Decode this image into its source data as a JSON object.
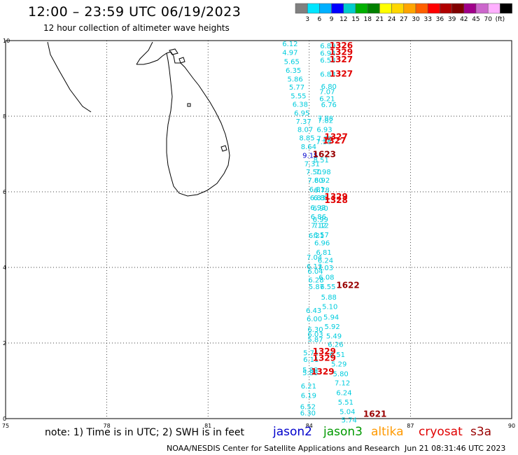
{
  "title": "12:00 – 23:59 UTC 06/19/2023",
  "subtitle": "12 hour collection of altimeter wave heights",
  "colorbar": {
    "colors": [
      "#808080",
      "#00e5ff",
      "#00b0ff",
      "#0000ff",
      "#00cccc",
      "#00b000",
      "#008000",
      "#ffff00",
      "#ffd700",
      "#ffa500",
      "#ff6000",
      "#ff0000",
      "#b00000",
      "#800000",
      "#a0008a",
      "#cc66cc",
      "#ffb0ff",
      "#000000"
    ],
    "labels": [
      "3",
      "6",
      "9",
      "12",
      "15",
      "18",
      "21",
      "24",
      "27",
      "30",
      "33",
      "36",
      "39",
      "42",
      "45",
      "70",
      "(ft)"
    ]
  },
  "axes": {
    "x_ticks": [
      "75",
      "78",
      "81",
      "84",
      "87",
      "90"
    ],
    "y_ticks": [
      "0",
      "2",
      "4",
      "6",
      "8",
      "10"
    ]
  },
  "observations": [
    {
      "t": "6.12",
      "lon": 83.2,
      "lat": 9.85,
      "c": "#00ccdd"
    },
    {
      "t": "4.97",
      "lon": 83.2,
      "lat": 9.62,
      "c": "#00ccdd"
    },
    {
      "t": "5.65",
      "lon": 83.25,
      "lat": 9.38,
      "c": "#00ccdd"
    },
    {
      "t": "6.35",
      "lon": 83.3,
      "lat": 9.15,
      "c": "#00ccdd"
    },
    {
      "t": "5.86",
      "lon": 83.35,
      "lat": 8.92,
      "c": "#00ccdd"
    },
    {
      "t": "5.77",
      "lon": 83.4,
      "lat": 8.7,
      "c": "#00ccdd"
    },
    {
      "t": "5.55",
      "lon": 83.45,
      "lat": 8.47,
      "c": "#00ccdd"
    },
    {
      "t": "6.38",
      "lon": 83.5,
      "lat": 8.25,
      "c": "#00ccdd"
    },
    {
      "t": "6.95",
      "lon": 83.55,
      "lat": 8.02,
      "c": "#00ccdd"
    },
    {
      "t": "7.37",
      "lon": 83.6,
      "lat": 7.8,
      "c": "#00ccdd"
    },
    {
      "t": "8.07",
      "lon": 83.65,
      "lat": 7.58,
      "c": "#00ccdd"
    },
    {
      "t": "8.85",
      "lon": 83.7,
      "lat": 7.36,
      "c": "#00ccdd"
    },
    {
      "t": "8.64",
      "lon": 83.75,
      "lat": 7.13,
      "c": "#00ccdd"
    },
    {
      "t": "9.15",
      "lon": 83.8,
      "lat": 6.9,
      "c": "#0000cc"
    },
    {
      "t": "7.31",
      "lon": 83.85,
      "lat": 6.68,
      "c": "#00ccdd"
    },
    {
      "t": "7.50",
      "lon": 83.9,
      "lat": 6.46,
      "c": "#00ccdd"
    },
    {
      "t": "7.80",
      "lon": 83.95,
      "lat": 6.24,
      "c": "#00ccdd"
    },
    {
      "t": "6.81",
      "lon": 84.0,
      "lat": 6.0,
      "c": "#00ccdd"
    },
    {
      "t": "6.83",
      "lon": 84.02,
      "lat": 5.78,
      "c": "#00ccdd"
    },
    {
      "t": "6.93",
      "lon": 84.03,
      "lat": 5.52,
      "c": "#00ccdd"
    },
    {
      "t": "6.86",
      "lon": 84.04,
      "lat": 5.28,
      "c": "#00ccdd"
    },
    {
      "t": "7.12",
      "lon": 84.05,
      "lat": 5.05,
      "c": "#00ccdd"
    },
    {
      "t": "6.21",
      "lon": 83.98,
      "lat": 4.78,
      "c": "#00ccdd"
    },
    {
      "t": "7.04",
      "lon": 83.92,
      "lat": 4.2,
      "c": "#00ccdd"
    },
    {
      "t": "6.13",
      "lon": 83.92,
      "lat": 3.96,
      "c": "#00ccdd"
    },
    {
      "t": "6.04",
      "lon": 83.95,
      "lat": 3.83,
      "c": "#00ccdd"
    },
    {
      "t": "6.28",
      "lon": 83.97,
      "lat": 3.6,
      "c": "#00ccdd"
    },
    {
      "t": "5.87",
      "lon": 83.98,
      "lat": 3.43,
      "c": "#00ccdd"
    },
    {
      "t": "6.43",
      "lon": 83.9,
      "lat": 2.8,
      "c": "#00ccdd"
    },
    {
      "t": "6.00",
      "lon": 83.92,
      "lat": 2.57,
      "c": "#00ccdd"
    },
    {
      "t": "6.30",
      "lon": 83.95,
      "lat": 2.3,
      "c": "#00ccdd"
    },
    {
      "t": "6.03",
      "lon": 83.95,
      "lat": 2.17,
      "c": "#00ccdd"
    },
    {
      "t": "5.87",
      "lon": 83.95,
      "lat": 2.03,
      "c": "#00ccdd"
    },
    {
      "t": "5.71",
      "lon": 83.82,
      "lat": 1.68,
      "c": "#00ccdd"
    },
    {
      "t": "6.11",
      "lon": 83.82,
      "lat": 1.5,
      "c": "#00ccdd"
    },
    {
      "t": "5.88",
      "lon": 83.8,
      "lat": 1.22,
      "c": "#00ccdd"
    },
    {
      "t": "5.86",
      "lon": 83.8,
      "lat": 1.15,
      "c": "#00ccdd"
    },
    {
      "t": "6.21",
      "lon": 83.75,
      "lat": 0.8,
      "c": "#00ccdd"
    },
    {
      "t": "6.19",
      "lon": 83.75,
      "lat": 0.55,
      "c": "#00ccdd"
    },
    {
      "t": "6.52",
      "lon": 83.73,
      "lat": 0.25,
      "c": "#00ccdd"
    },
    {
      "t": "6.30",
      "lon": 83.73,
      "lat": 0.08,
      "c": "#00ccdd"
    },
    {
      "t": "6.89",
      "lon": 84.32,
      "lat": 9.8,
      "c": "#00ccdd"
    },
    {
      "t": "6.94",
      "lon": 84.32,
      "lat": 9.6,
      "c": "#00ccdd"
    },
    {
      "t": "6.58",
      "lon": 84.32,
      "lat": 9.42,
      "c": "#00ccdd"
    },
    {
      "t": "6.83",
      "lon": 84.32,
      "lat": 9.05,
      "c": "#00ccdd"
    },
    {
      "t": "6.80",
      "lon": 84.35,
      "lat": 8.72,
      "c": "#00ccdd"
    },
    {
      "t": "7.07",
      "lon": 84.3,
      "lat": 8.58,
      "c": "#00ccdd"
    },
    {
      "t": "6.21",
      "lon": 84.3,
      "lat": 8.4,
      "c": "#00ccdd"
    },
    {
      "t": "6.76",
      "lon": 84.35,
      "lat": 8.24,
      "c": "#00ccdd"
    },
    {
      "t": "7.88",
      "lon": 84.25,
      "lat": 7.88,
      "c": "#00ccdd"
    },
    {
      "t": "7.82",
      "lon": 84.25,
      "lat": 7.82,
      "c": "#00ccdd"
    },
    {
      "t": "6.93",
      "lon": 84.22,
      "lat": 7.58,
      "c": "#00ccdd"
    },
    {
      "t": "7.38",
      "lon": 84.22,
      "lat": 7.34,
      "c": "#00ccdd"
    },
    {
      "t": "7.56",
      "lon": 84.2,
      "lat": 7.26,
      "c": "#00ccdd"
    },
    {
      "t": "8.51",
      "lon": 84.12,
      "lat": 6.78,
      "c": "#00ccdd"
    },
    {
      "t": "7.98",
      "lon": 84.18,
      "lat": 6.46,
      "c": "#00ccdd"
    },
    {
      "t": "6.92",
      "lon": 84.15,
      "lat": 6.24,
      "c": "#00ccdd"
    },
    {
      "t": "6.78",
      "lon": 84.14,
      "lat": 5.98,
      "c": "#00ccdd"
    },
    {
      "t": "6.85",
      "lon": 84.12,
      "lat": 5.78,
      "c": "#00ccdd"
    },
    {
      "t": "6.90",
      "lon": 84.1,
      "lat": 5.5,
      "c": "#00ccdd"
    },
    {
      "t": "6.99",
      "lon": 84.1,
      "lat": 5.2,
      "c": "#00ccdd"
    },
    {
      "t": "7.12",
      "lon": 84.12,
      "lat": 5.05,
      "c": "#00ccdd"
    },
    {
      "t": "6.57",
      "lon": 84.12,
      "lat": 4.8,
      "c": "#00ccdd"
    },
    {
      "t": "6.96",
      "lon": 84.15,
      "lat": 4.58,
      "c": "#00ccdd"
    },
    {
      "t": "6.81",
      "lon": 84.2,
      "lat": 4.33,
      "c": "#00ccdd"
    },
    {
      "t": "6.24",
      "lon": 84.25,
      "lat": 4.12,
      "c": "#00ccdd"
    },
    {
      "t": "7.03",
      "lon": 84.25,
      "lat": 3.93,
      "c": "#00ccdd"
    },
    {
      "t": "6.08",
      "lon": 84.28,
      "lat": 3.68,
      "c": "#00ccdd"
    },
    {
      "t": "6.55",
      "lon": 84.32,
      "lat": 3.43,
      "c": "#00ccdd"
    },
    {
      "t": "5.88",
      "lon": 84.35,
      "lat": 3.15,
      "c": "#00ccdd"
    },
    {
      "t": "5.10",
      "lon": 84.38,
      "lat": 2.9,
      "c": "#00ccdd"
    },
    {
      "t": "5.94",
      "lon": 84.42,
      "lat": 2.62,
      "c": "#00ccdd"
    },
    {
      "t": "5.92",
      "lon": 84.45,
      "lat": 2.37,
      "c": "#00ccdd"
    },
    {
      "t": "5.49",
      "lon": 84.5,
      "lat": 2.12,
      "c": "#00ccdd"
    },
    {
      "t": "6.26",
      "lon": 84.55,
      "lat": 1.9,
      "c": "#00ccdd"
    },
    {
      "t": "6.51",
      "lon": 84.6,
      "lat": 1.63,
      "c": "#00ccdd"
    },
    {
      "t": "5.29",
      "lon": 84.65,
      "lat": 1.38,
      "c": "#00ccdd"
    },
    {
      "t": "5.80",
      "lon": 84.7,
      "lat": 1.12,
      "c": "#00ccdd"
    },
    {
      "t": "7.12",
      "lon": 84.75,
      "lat": 0.88,
      "c": "#00ccdd"
    },
    {
      "t": "6.24",
      "lon": 84.8,
      "lat": 0.62,
      "c": "#00ccdd"
    },
    {
      "t": "5.51",
      "lon": 84.85,
      "lat": 0.37,
      "c": "#00ccdd"
    },
    {
      "t": "5.04",
      "lon": 84.9,
      "lat": 0.12,
      "c": "#00ccdd"
    },
    {
      "t": "5.74",
      "lon": 84.95,
      "lat": -0.1,
      "c": "#00ccdd"
    }
  ],
  "overpass_times": [
    {
      "t": "1326",
      "lon": 84.6,
      "lat": 9.8,
      "c": "#e00000"
    },
    {
      "t": "1329",
      "lon": 84.6,
      "lat": 9.62,
      "c": "#e00000"
    },
    {
      "t": "1327",
      "lon": 84.6,
      "lat": 9.43,
      "c": "#e00000"
    },
    {
      "t": "1327",
      "lon": 84.6,
      "lat": 9.05,
      "c": "#e00000"
    },
    {
      "t": "1327",
      "lon": 84.45,
      "lat": 7.38,
      "c": "#e00000"
    },
    {
      "t": "1327",
      "lon": 84.4,
      "lat": 7.28,
      "c": "#e00000"
    },
    {
      "t": "1623",
      "lon": 84.1,
      "lat": 6.92,
      "c": "#990000"
    },
    {
      "t": "1329",
      "lon": 84.45,
      "lat": 5.8,
      "c": "#e00000"
    },
    {
      "t": "1328",
      "lon": 84.45,
      "lat": 5.7,
      "c": "#e00000"
    },
    {
      "t": "1622",
      "lon": 84.8,
      "lat": 3.45,
      "c": "#990000"
    },
    {
      "t": "1329",
      "lon": 84.1,
      "lat": 1.7,
      "c": "#e00000"
    },
    {
      "t": "1329",
      "lon": 84.1,
      "lat": 1.53,
      "c": "#e00000"
    },
    {
      "t": "1329",
      "lon": 84.05,
      "lat": 1.17,
      "c": "#e00000"
    },
    {
      "t": "1621",
      "lon": 85.6,
      "lat": 0.05,
      "c": "#990000"
    }
  ],
  "footer": {
    "note": "note: 1) Time is in UTC; 2) SWH is in feet",
    "legend": [
      {
        "label": "jason2",
        "color": "#0000cc"
      },
      {
        "label": "jason3",
        "color": "#009900"
      },
      {
        "label": "altika",
        "color": "#ff9900"
      },
      {
        "label": "cryosat",
        "color": "#e00000"
      },
      {
        "label": "s3a",
        "color": "#990000"
      }
    ],
    "credit": "NOAA/NESDIS Center for Satellite Applications and Research",
    "timestamp": "Jun 21 08:31:46 UTC 2023"
  }
}
